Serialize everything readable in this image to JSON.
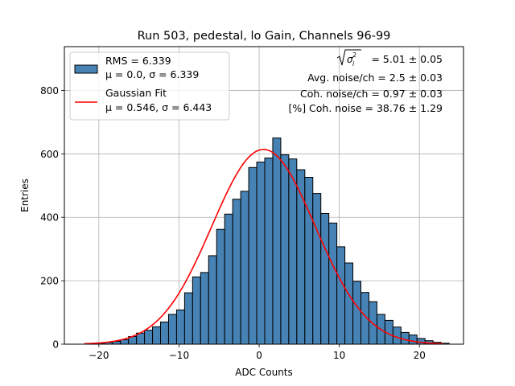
{
  "chart_data": {
    "type": "bar",
    "title": "Run 503, pedestal, lo Gain, Channels 96-99",
    "xlabel": "ADC Counts",
    "ylabel": "Entries",
    "xlim": [
      -24.3,
      25.5
    ],
    "ylim": [
      0,
      938
    ],
    "xticks": [
      -20,
      -10,
      0,
      10,
      20
    ],
    "yticks": [
      0,
      200,
      400,
      600,
      800
    ],
    "grid": true,
    "legend_position": "upper-left",
    "bin_edges_start": -21.3,
    "bin_width": 1.0,
    "histogram": {
      "name": "RMS = 6.339",
      "subtitle": "μ = 0.0, σ = 6.339",
      "color": "#4682b4",
      "values": [
        2,
        3,
        6,
        9,
        14,
        24,
        35,
        44,
        55,
        70,
        94,
        108,
        162,
        212,
        226,
        279,
        362,
        410,
        457,
        482,
        557,
        574,
        587,
        650,
        597,
        584,
        550,
        526,
        475,
        412,
        382,
        307,
        256,
        198,
        163,
        134,
        94,
        75,
        54,
        37,
        29,
        18,
        11,
        6,
        3
      ]
    },
    "fit": {
      "name": "Gaussian Fit",
      "subtitle": "μ = 0.546, σ = 6.443",
      "color": "#ff0000",
      "mu": 0.546,
      "sigma": 6.443,
      "amplitude": 614,
      "x_range": [
        -21.8,
        22.9
      ]
    },
    "annotations": {
      "line1_value": "= 5.01 ± 0.05",
      "line2": "Avg. noise/ch = 2.5 ± 0.03",
      "line3": "Coh. noise/ch = 0.97 ± 0.03",
      "line4": "[%] Coh. noise = 38.76 ± 1.29"
    }
  }
}
